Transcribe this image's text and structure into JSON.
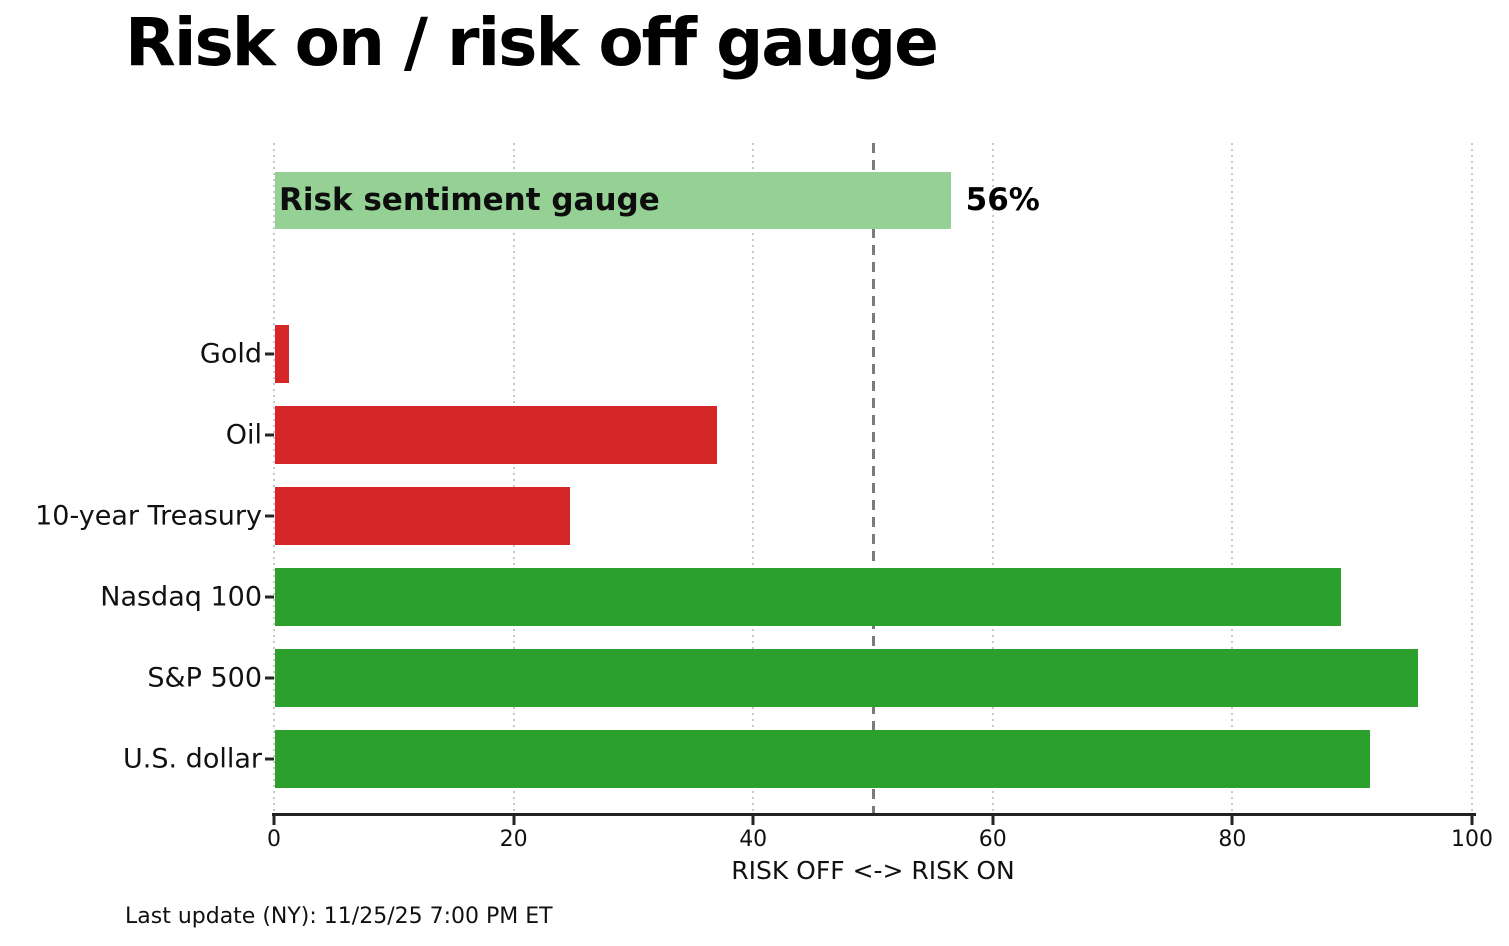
{
  "title": "Risk on / risk off gauge",
  "footer": "Last update (NY): 11/25/25 7:00 PM ET",
  "chart_data": {
    "type": "bar",
    "orientation": "horizontal",
    "title": "Risk on / risk off gauge",
    "xlabel": "RISK OFF <-> RISK ON",
    "xlim": [
      0,
      100
    ],
    "x_ticks": [
      0,
      20,
      40,
      60,
      80,
      100
    ],
    "grid": "vertical dotted gridlines at each x tick",
    "reference_line_x": 50,
    "legend_position": "none",
    "gauge": {
      "label": "Risk sentiment gauge",
      "value": 56.4,
      "annotation": "56%",
      "color": "#95d095"
    },
    "rows": [
      {
        "label": "Gold",
        "value": 1.2,
        "color": "#d62728",
        "sentiment": "risk-off"
      },
      {
        "label": "Oil",
        "value": 36.9,
        "color": "#d62728",
        "sentiment": "risk-off"
      },
      {
        "label": "10-year Treasury",
        "value": 24.6,
        "color": "#d62728",
        "sentiment": "risk-off"
      },
      {
        "label": "Nasdaq 100",
        "value": 89.0,
        "color": "#2ca02c",
        "sentiment": "risk-on"
      },
      {
        "label": "S&P 500",
        "value": 95.4,
        "color": "#2ca02c",
        "sentiment": "risk-on"
      },
      {
        "label": "U.S. dollar",
        "value": 91.4,
        "color": "#2ca02c",
        "sentiment": "risk-on"
      }
    ],
    "colors": {
      "risk_off_red": "#d62728",
      "risk_on_green": "#2ca02c",
      "gauge_light_green": "#95d095",
      "reference_line_gray": "#7b7b7b",
      "gridline_gray": "#c9c9c9",
      "axis_dark": "#222222"
    }
  }
}
